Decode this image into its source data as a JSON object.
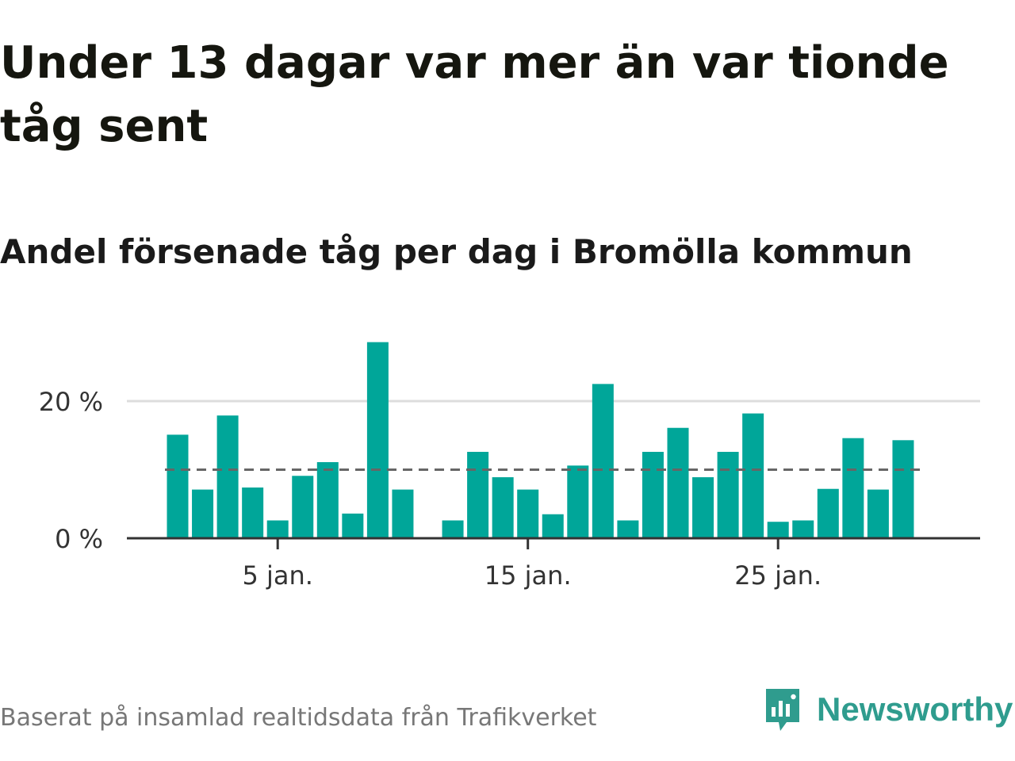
{
  "title": "Under 13 dagar var mer än var tionde tåg sent",
  "subtitle": "Andel försenade tåg per dag i Bromölla kommun",
  "footer": "Baserat på insamlad realtidsdata från Trafikverket",
  "brand": {
    "name": "Newsworthy",
    "icon": "newsworthy-logo-icon"
  },
  "colors": {
    "bar": "#00a699",
    "reference": "#666666",
    "grid": "#dddddd",
    "axis": "#333333"
  },
  "chart_data": {
    "type": "bar",
    "x": [
      1,
      2,
      3,
      4,
      5,
      6,
      7,
      8,
      9,
      10,
      11,
      12,
      13,
      14,
      15,
      16,
      17,
      18,
      19,
      20,
      21,
      22,
      23,
      24,
      25,
      26,
      27,
      28,
      29,
      30,
      31
    ],
    "values": [
      15.1,
      7.1,
      17.9,
      7.4,
      2.6,
      9.1,
      11.1,
      3.6,
      28.6,
      7.1,
      null,
      2.6,
      12.6,
      8.9,
      7.1,
      3.5,
      10.6,
      22.5,
      2.6,
      12.6,
      16.1,
      8.9,
      12.6,
      18.2,
      2.4,
      2.6,
      7.2,
      14.6,
      7.1,
      14.3,
      null
    ],
    "x_ticks": [
      {
        "x": 5,
        "label": "5 jan."
      },
      {
        "x": 15,
        "label": "15 jan."
      },
      {
        "x": 25,
        "label": "25 jan."
      }
    ],
    "y_ticks": [
      {
        "y": 0,
        "label": "0 %"
      },
      {
        "y": 20,
        "label": "20 %"
      }
    ],
    "reference_line": 10,
    "ylim": [
      0,
      30
    ],
    "grid": true
  }
}
